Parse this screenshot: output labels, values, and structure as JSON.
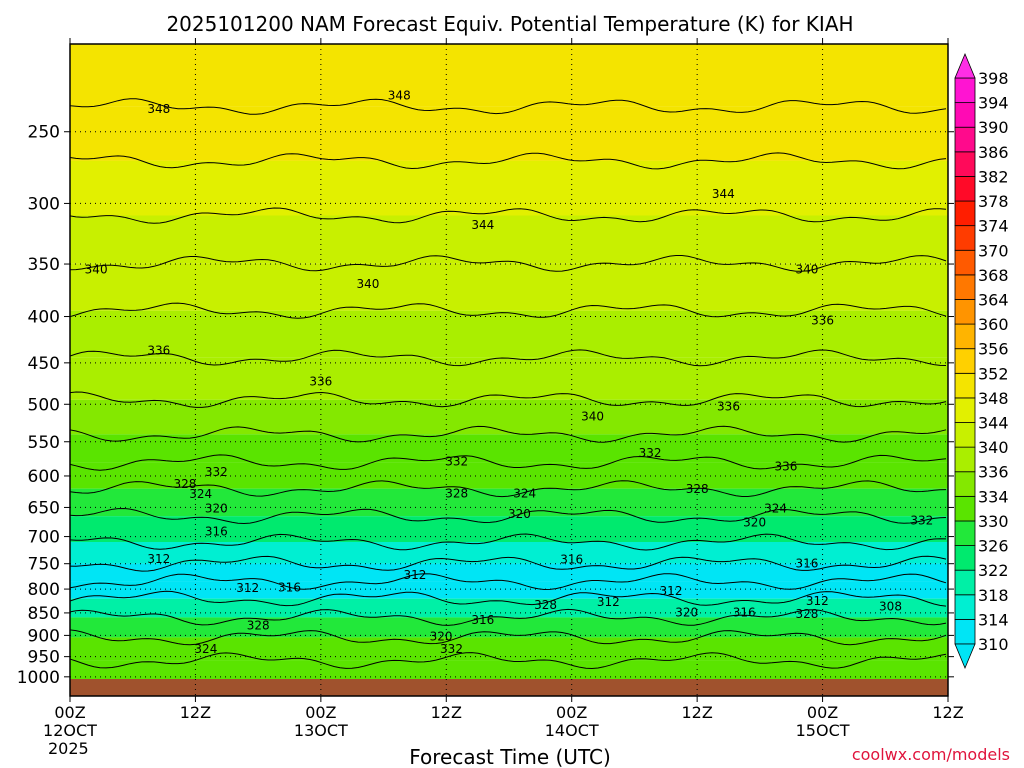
{
  "title": "2025101200 NAM Forecast Equiv. Potential Temperature (K) for KIAH",
  "xlabel": "Forecast Time (UTC)",
  "credit": "coolwx.com/models",
  "chart_data": {
    "type": "heatmap",
    "title": "2025101200 NAM Forecast Equiv. Potential Temperature (K) for KIAH",
    "xlabel": "Forecast Time (UTC)",
    "ylabel": "",
    "y_axis": {
      "scale": "log",
      "ylim": [
        1050,
        200
      ],
      "ticks": [
        250,
        300,
        350,
        400,
        450,
        500,
        550,
        600,
        650,
        700,
        750,
        800,
        850,
        900,
        950,
        1000
      ]
    },
    "x_axis": {
      "xlim": [
        0,
        84
      ],
      "ticks": [
        {
          "hour": 0,
          "line1": "00Z",
          "line2": "12OCT",
          "line3": "2025"
        },
        {
          "hour": 12,
          "line1": "12Z",
          "line2": "",
          "line3": ""
        },
        {
          "hour": 24,
          "line1": "00Z",
          "line2": "13OCT",
          "line3": ""
        },
        {
          "hour": 36,
          "line1": "12Z",
          "line2": "",
          "line3": ""
        },
        {
          "hour": 48,
          "line1": "00Z",
          "line2": "14OCT",
          "line3": ""
        },
        {
          "hour": 60,
          "line1": "12Z",
          "line2": "",
          "line3": ""
        },
        {
          "hour": 72,
          "line1": "00Z",
          "line2": "15OCT",
          "line3": ""
        },
        {
          "hour": 84,
          "line1": "12Z",
          "line2": "",
          "line3": ""
        }
      ]
    },
    "grid": true,
    "colorbar": {
      "levels": [
        310,
        314,
        318,
        322,
        326,
        330,
        334,
        336,
        340,
        344,
        348,
        352,
        356,
        360,
        364,
        368,
        370,
        374,
        378,
        382,
        386,
        390,
        394,
        398
      ],
      "colors": [
        "#00e5f5",
        "#00efd2",
        "#00f0a6",
        "#00ea6e",
        "#22e83a",
        "#5ae400",
        "#84e800",
        "#aaee00",
        "#c8f000",
        "#e2f000",
        "#f4e400",
        "#ffd000",
        "#ffb400",
        "#ff9400",
        "#ff7800",
        "#ff5a00",
        "#ff3c00",
        "#ff1e00",
        "#ff0a28",
        "#ff0a5a",
        "#ff0a8c",
        "#ff0ab4",
        "#ff14d2",
        "#ff2ee6"
      ]
    },
    "bands": [
      {
        "p": 220,
        "theta": 351
      },
      {
        "p": 250,
        "theta": 348
      },
      {
        "p": 290,
        "theta": 345
      },
      {
        "p": 330,
        "theta": 343
      },
      {
        "p": 370,
        "theta": 340
      },
      {
        "p": 420,
        "theta": 338
      },
      {
        "p": 470,
        "theta": 336
      },
      {
        "p": 520,
        "theta": 334
      },
      {
        "p": 560,
        "theta": 332
      },
      {
        "p": 600,
        "theta": 330
      },
      {
        "p": 640,
        "theta": 327
      },
      {
        "p": 690,
        "theta": 322
      },
      {
        "p": 730,
        "theta": 317
      },
      {
        "p": 770,
        "theta": 313
      },
      {
        "p": 800,
        "theta": 312
      },
      {
        "p": 840,
        "theta": 320
      },
      {
        "p": 880,
        "theta": 326
      },
      {
        "p": 930,
        "theta": 330
      },
      {
        "p": 990,
        "theta": 333
      }
    ],
    "contour_labels": [
      {
        "text": "348",
        "hour": 8.5,
        "p": 236
      },
      {
        "text": "348",
        "hour": 31.5,
        "p": 228
      },
      {
        "text": "344",
        "hour": 62.5,
        "p": 293
      },
      {
        "text": "344",
        "hour": 39.5,
        "p": 317
      },
      {
        "text": "340",
        "hour": 2.5,
        "p": 355
      },
      {
        "text": "340",
        "hour": 28.5,
        "p": 368
      },
      {
        "text": "340",
        "hour": 70.5,
        "p": 355
      },
      {
        "text": "336",
        "hour": 72.0,
        "p": 404
      },
      {
        "text": "336",
        "hour": 8.5,
        "p": 436
      },
      {
        "text": "336",
        "hour": 24.0,
        "p": 472
      },
      {
        "text": "340",
        "hour": 50.0,
        "p": 516
      },
      {
        "text": "336",
        "hour": 63.0,
        "p": 503
      },
      {
        "text": "332",
        "hour": 55.5,
        "p": 566
      },
      {
        "text": "336",
        "hour": 68.5,
        "p": 586
      },
      {
        "text": "332",
        "hour": 14.0,
        "p": 594
      },
      {
        "text": "332",
        "hour": 37.0,
        "p": 578
      },
      {
        "text": "328",
        "hour": 11.0,
        "p": 612
      },
      {
        "text": "328",
        "hour": 37.0,
        "p": 627
      },
      {
        "text": "324",
        "hour": 43.5,
        "p": 627
      },
      {
        "text": "328",
        "hour": 60.0,
        "p": 620
      },
      {
        "text": "324",
        "hour": 12.5,
        "p": 628
      },
      {
        "text": "320",
        "hour": 14.0,
        "p": 652
      },
      {
        "text": "324",
        "hour": 67.5,
        "p": 652
      },
      {
        "text": "332",
        "hour": 81.5,
        "p": 672
      },
      {
        "text": "320",
        "hour": 43.0,
        "p": 661
      },
      {
        "text": "320",
        "hour": 65.5,
        "p": 675
      },
      {
        "text": "316",
        "hour": 14.0,
        "p": 691
      },
      {
        "text": "312",
        "hour": 8.5,
        "p": 741
      },
      {
        "text": "316",
        "hour": 48.0,
        "p": 742
      },
      {
        "text": "316",
        "hour": 70.5,
        "p": 750
      },
      {
        "text": "312",
        "hour": 33.0,
        "p": 772
      },
      {
        "text": "312",
        "hour": 17.0,
        "p": 798
      },
      {
        "text": "316",
        "hour": 21.0,
        "p": 797
      },
      {
        "text": "312",
        "hour": 57.5,
        "p": 804
      },
      {
        "text": "312",
        "hour": 51.5,
        "p": 827
      },
      {
        "text": "312",
        "hour": 71.5,
        "p": 825
      },
      {
        "text": "328",
        "hour": 45.5,
        "p": 833
      },
      {
        "text": "308",
        "hour": 78.5,
        "p": 836
      },
      {
        "text": "320",
        "hour": 59.0,
        "p": 849
      },
      {
        "text": "316",
        "hour": 64.5,
        "p": 849
      },
      {
        "text": "328",
        "hour": 70.5,
        "p": 852
      },
      {
        "text": "316",
        "hour": 39.5,
        "p": 866
      },
      {
        "text": "328",
        "hour": 18.0,
        "p": 878
      },
      {
        "text": "320",
        "hour": 35.5,
        "p": 903
      },
      {
        "text": "332",
        "hour": 36.5,
        "p": 932
      },
      {
        "text": "324",
        "hour": 13.0,
        "p": 932
      }
    ]
  }
}
